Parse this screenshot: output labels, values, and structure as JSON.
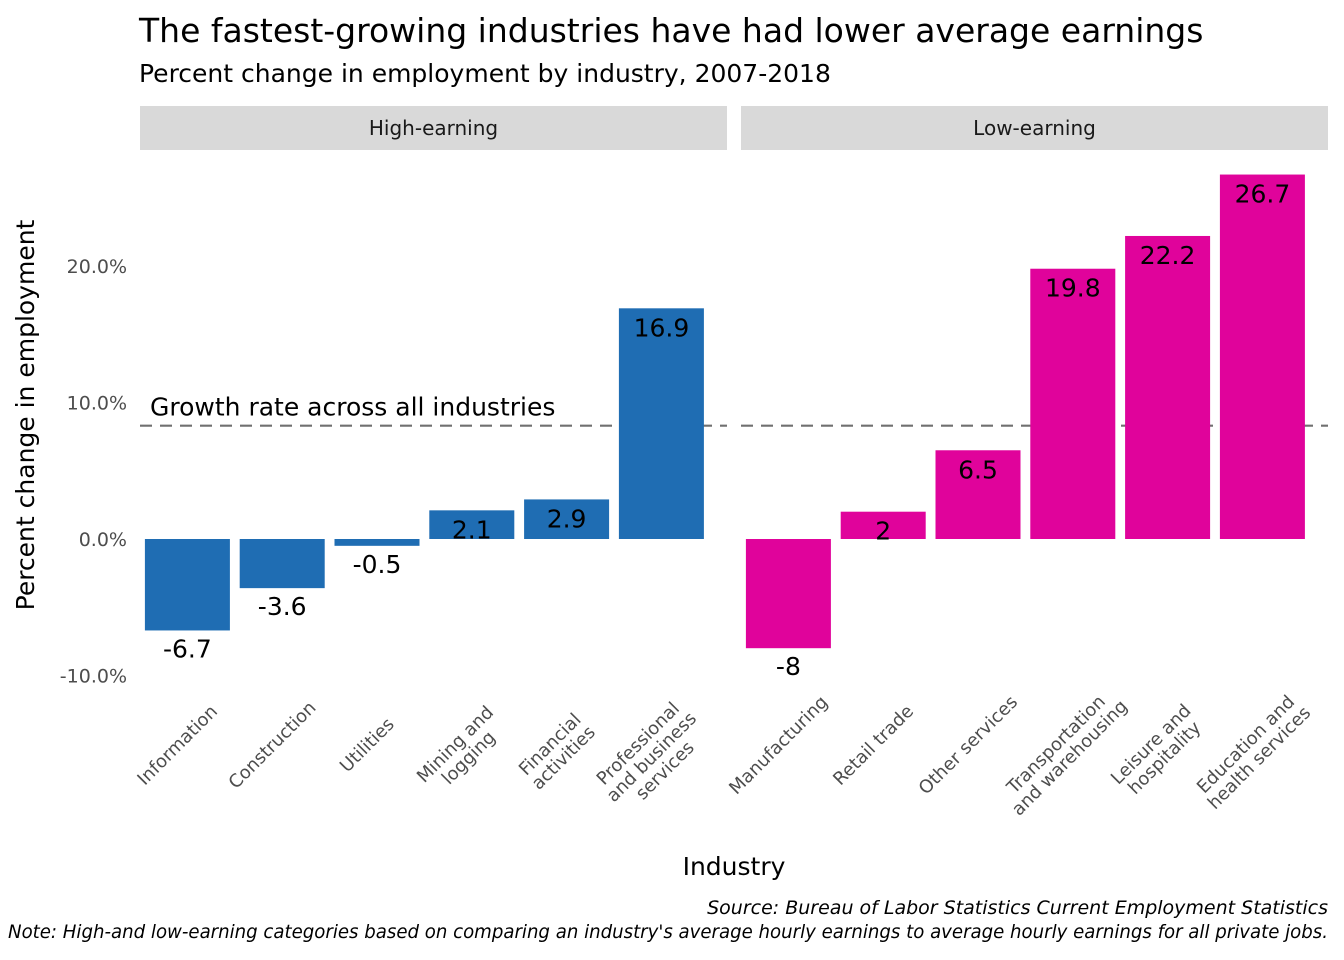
{
  "chart_data": {
    "type": "bar",
    "title": "The fastest-growing industries have had lower average earnings",
    "subtitle": "Percent change in employment by industry, 2007-2018",
    "xlabel": "Industry",
    "ylabel": "Percent change in employment",
    "ylim": [
      -12,
      28
    ],
    "yticks": [
      {
        "value": -10,
        "label": "-10.0%"
      },
      {
        "value": 0,
        "label": "0.0%"
      },
      {
        "value": 10,
        "label": "10.0%"
      },
      {
        "value": 20,
        "label": "20.0%"
      }
    ],
    "reference_line": {
      "value": 8.3,
      "label": "Growth rate across all industries",
      "style": "dashed",
      "color": "#707070"
    },
    "grid": false,
    "facets": [
      {
        "name": "High-earning",
        "color": "#1f6db3",
        "categories": [
          [
            "Information"
          ],
          [
            "Construction"
          ],
          [
            "Utilities"
          ],
          [
            "Mining and",
            "logging"
          ],
          [
            "Financial",
            "activities"
          ],
          [
            "Professional",
            "and business",
            "services"
          ]
        ],
        "values": [
          -6.7,
          -3.6,
          -0.5,
          2.1,
          2.9,
          16.9
        ],
        "value_labels": [
          "-6.7",
          "-3.6",
          "-0.5",
          "2.1",
          "2.9",
          "16.9"
        ]
      },
      {
        "name": "Low-earning",
        "color": "#e0039b",
        "categories": [
          [
            "Manufacturing"
          ],
          [
            "Retail trade"
          ],
          [
            "Other services"
          ],
          [
            "Transportation",
            "and warehousing"
          ],
          [
            "Leisure and",
            "hospitality"
          ],
          [
            "Education and",
            "health services"
          ]
        ],
        "values": [
          -8,
          2,
          6.5,
          19.8,
          22.2,
          26.7
        ],
        "value_labels": [
          "-8",
          "2",
          "6.5",
          "19.8",
          "22.2",
          "26.7"
        ]
      }
    ],
    "captions": [
      "Source: Bureau of Labor Statistics Current Employment Statistics",
      "Note: High-and low-earning categories based on comparing an industry's average hourly earnings to average hourly earnings for all private jobs."
    ]
  }
}
